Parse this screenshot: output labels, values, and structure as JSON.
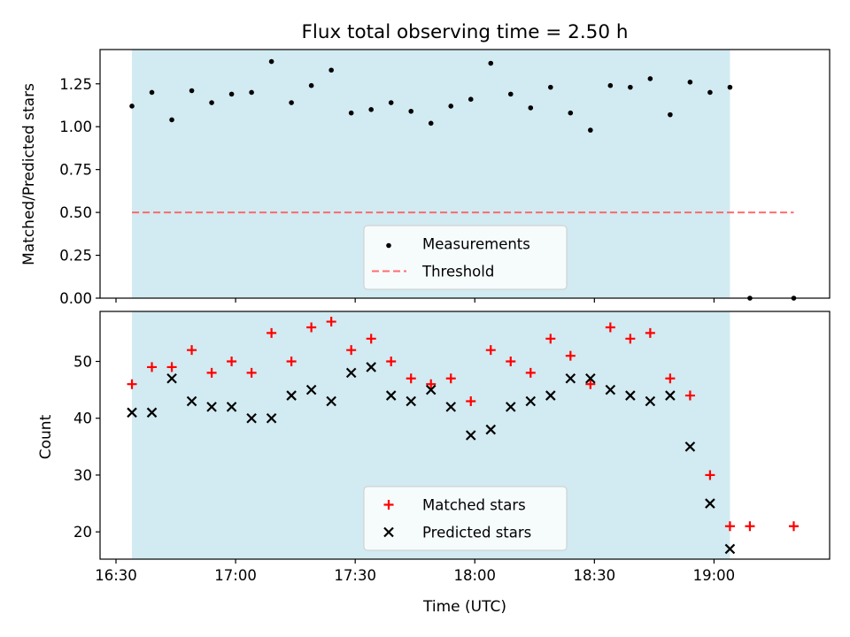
{
  "title": "Flux total observing time = 2.50 h",
  "chart_data": [
    {
      "panel": "top",
      "type": "scatter",
      "ylabel": "Matched/Predicted stars",
      "ylim": [
        0,
        1.45
      ],
      "yticks": [
        0.0,
        0.25,
        0.5,
        0.75,
        1.0,
        1.25
      ],
      "ytick_labels": [
        "0.00",
        "0.25",
        "0.50",
        "0.75",
        "1.00",
        "1.25"
      ],
      "shaded_span": {
        "from": "16:34",
        "to": "19:04",
        "color": "#add8e6"
      },
      "threshold": {
        "name": "Threshold",
        "value": 0.5,
        "from": "16:34",
        "to": "19:20",
        "color": "#ff5555",
        "style": "dashed"
      },
      "series": [
        {
          "name": "Measurements",
          "color": "#000000",
          "marker": "dot",
          "points": [
            [
              "16:34",
              1.12
            ],
            [
              "16:39",
              1.2
            ],
            [
              "16:44",
              1.04
            ],
            [
              "16:49",
              1.21
            ],
            [
              "16:54",
              1.14
            ],
            [
              "16:59",
              1.19
            ],
            [
              "17:04",
              1.2
            ],
            [
              "17:09",
              1.38
            ],
            [
              "17:14",
              1.14
            ],
            [
              "17:19",
              1.24
            ],
            [
              "17:24",
              1.33
            ],
            [
              "17:29",
              1.08
            ],
            [
              "17:34",
              1.1
            ],
            [
              "17:39",
              1.14
            ],
            [
              "17:44",
              1.09
            ],
            [
              "17:49",
              1.02
            ],
            [
              "17:54",
              1.12
            ],
            [
              "17:59",
              1.16
            ],
            [
              "18:04",
              1.37
            ],
            [
              "18:09",
              1.19
            ],
            [
              "18:14",
              1.11
            ],
            [
              "18:19",
              1.23
            ],
            [
              "18:24",
              1.08
            ],
            [
              "18:29",
              0.98
            ],
            [
              "18:34",
              1.24
            ],
            [
              "18:39",
              1.23
            ],
            [
              "18:44",
              1.28
            ],
            [
              "18:49",
              1.07
            ],
            [
              "18:54",
              1.26
            ],
            [
              "18:59",
              1.2
            ],
            [
              "19:04",
              1.23
            ],
            [
              "19:09",
              0.0
            ],
            [
              "19:20",
              0.0
            ]
          ]
        }
      ],
      "legend": {
        "position": "lower-center",
        "entries": [
          {
            "label": "Measurements",
            "marker": "dot",
            "color": "#000000"
          },
          {
            "label": "Threshold",
            "marker": "dash",
            "color": "#ff5555"
          }
        ]
      }
    },
    {
      "panel": "bottom",
      "type": "scatter",
      "xlabel": "Time (UTC)",
      "ylabel": "Count",
      "ylim": [
        15.2,
        58.8
      ],
      "yticks": [
        20,
        30,
        40,
        50
      ],
      "ytick_labels": [
        "20",
        "30",
        "40",
        "50"
      ],
      "xlim": [
        "16:26",
        "19:29"
      ],
      "xticks": [
        "16:30",
        "17:00",
        "17:30",
        "18:00",
        "18:30",
        "19:00"
      ],
      "xtick_labels": [
        "16:30",
        "17:00",
        "17:30",
        "18:00",
        "18:30",
        "19:00"
      ],
      "shaded_span": {
        "from": "16:34",
        "to": "19:04",
        "color": "#add8e6"
      },
      "series": [
        {
          "name": "Matched stars",
          "color": "#ff0000",
          "marker": "plus",
          "points": [
            [
              "16:34",
              46
            ],
            [
              "16:39",
              49
            ],
            [
              "16:44",
              49
            ],
            [
              "16:49",
              52
            ],
            [
              "16:54",
              48
            ],
            [
              "16:59",
              50
            ],
            [
              "17:04",
              48
            ],
            [
              "17:09",
              55
            ],
            [
              "17:14",
              50
            ],
            [
              "17:19",
              56
            ],
            [
              "17:24",
              57
            ],
            [
              "17:29",
              52
            ],
            [
              "17:34",
              54
            ],
            [
              "17:39",
              50
            ],
            [
              "17:44",
              47
            ],
            [
              "17:49",
              46
            ],
            [
              "17:54",
              47
            ],
            [
              "17:59",
              43
            ],
            [
              "18:04",
              52
            ],
            [
              "18:09",
              50
            ],
            [
              "18:14",
              48
            ],
            [
              "18:19",
              54
            ],
            [
              "18:24",
              51
            ],
            [
              "18:29",
              46
            ],
            [
              "18:34",
              56
            ],
            [
              "18:39",
              54
            ],
            [
              "18:44",
              55
            ],
            [
              "18:49",
              47
            ],
            [
              "18:54",
              44
            ],
            [
              "18:59",
              30
            ],
            [
              "19:04",
              21
            ],
            [
              "19:09",
              21
            ],
            [
              "19:20",
              21
            ]
          ]
        },
        {
          "name": "Predicted stars",
          "color": "#000000",
          "marker": "x",
          "points": [
            [
              "16:34",
              41
            ],
            [
              "16:39",
              41
            ],
            [
              "16:44",
              47
            ],
            [
              "16:49",
              43
            ],
            [
              "16:54",
              42
            ],
            [
              "16:59",
              42
            ],
            [
              "17:04",
              40
            ],
            [
              "17:09",
              40
            ],
            [
              "17:14",
              44
            ],
            [
              "17:19",
              45
            ],
            [
              "17:24",
              43
            ],
            [
              "17:29",
              48
            ],
            [
              "17:34",
              49
            ],
            [
              "17:39",
              44
            ],
            [
              "17:44",
              43
            ],
            [
              "17:49",
              45
            ],
            [
              "17:54",
              42
            ],
            [
              "17:59",
              37
            ],
            [
              "18:04",
              38
            ],
            [
              "18:09",
              42
            ],
            [
              "18:14",
              43
            ],
            [
              "18:19",
              44
            ],
            [
              "18:24",
              47
            ],
            [
              "18:29",
              47
            ],
            [
              "18:34",
              45
            ],
            [
              "18:39",
              44
            ],
            [
              "18:44",
              43
            ],
            [
              "18:49",
              44
            ],
            [
              "18:54",
              35
            ],
            [
              "18:59",
              25
            ],
            [
              "19:04",
              17
            ]
          ]
        }
      ],
      "legend": {
        "position": "lower-center",
        "entries": [
          {
            "label": "Matched stars",
            "marker": "plus",
            "color": "#ff0000"
          },
          {
            "label": "Predicted stars",
            "marker": "x",
            "color": "#000000"
          }
        ]
      }
    }
  ]
}
